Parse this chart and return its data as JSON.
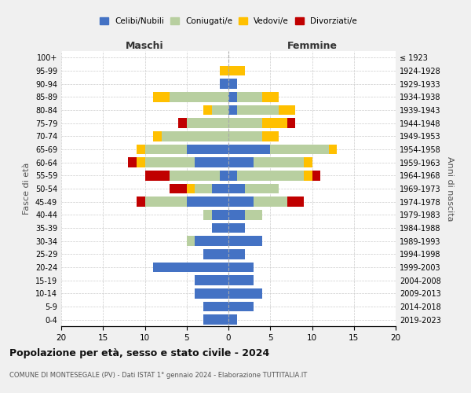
{
  "age_groups": [
    "0-4",
    "5-9",
    "10-14",
    "15-19",
    "20-24",
    "25-29",
    "30-34",
    "35-39",
    "40-44",
    "45-49",
    "50-54",
    "55-59",
    "60-64",
    "65-69",
    "70-74",
    "75-79",
    "80-84",
    "85-89",
    "90-94",
    "95-99",
    "100+"
  ],
  "birth_years": [
    "2019-2023",
    "2014-2018",
    "2009-2013",
    "2004-2008",
    "1999-2003",
    "1994-1998",
    "1989-1993",
    "1984-1988",
    "1979-1983",
    "1974-1978",
    "1969-1973",
    "1964-1968",
    "1959-1963",
    "1954-1958",
    "1949-1953",
    "1944-1948",
    "1939-1943",
    "1934-1938",
    "1929-1933",
    "1924-1928",
    "≤ 1923"
  ],
  "colors": {
    "celibi": "#4472c4",
    "coniugati": "#b8cfa0",
    "vedovi": "#ffc000",
    "divorziati": "#c00000"
  },
  "males": {
    "celibi": [
      3,
      3,
      4,
      4,
      9,
      3,
      4,
      2,
      2,
      5,
      2,
      1,
      4,
      5,
      0,
      0,
      0,
      0,
      1,
      0,
      0
    ],
    "coniugati": [
      0,
      0,
      0,
      0,
      0,
      0,
      1,
      0,
      1,
      5,
      2,
      6,
      6,
      5,
      8,
      5,
      2,
      7,
      0,
      0,
      0
    ],
    "vedovi": [
      0,
      0,
      0,
      0,
      0,
      0,
      0,
      0,
      0,
      0,
      1,
      0,
      1,
      1,
      1,
      0,
      1,
      2,
      0,
      1,
      0
    ],
    "divorziati": [
      0,
      0,
      0,
      0,
      0,
      0,
      0,
      0,
      0,
      1,
      2,
      3,
      1,
      0,
      0,
      1,
      0,
      0,
      0,
      0,
      0
    ]
  },
  "females": {
    "celibi": [
      1,
      3,
      4,
      3,
      3,
      2,
      4,
      2,
      2,
      3,
      2,
      1,
      3,
      5,
      0,
      0,
      1,
      1,
      1,
      0,
      0
    ],
    "coniugati": [
      0,
      0,
      0,
      0,
      0,
      0,
      0,
      0,
      2,
      4,
      4,
      8,
      6,
      7,
      4,
      4,
      5,
      3,
      0,
      0,
      0
    ],
    "vedovi": [
      0,
      0,
      0,
      0,
      0,
      0,
      0,
      0,
      0,
      0,
      0,
      1,
      1,
      1,
      2,
      3,
      2,
      2,
      0,
      2,
      0
    ],
    "divorziati": [
      0,
      0,
      0,
      0,
      0,
      0,
      0,
      0,
      0,
      2,
      0,
      1,
      0,
      0,
      0,
      1,
      0,
      0,
      0,
      0,
      0
    ]
  },
  "xlim": [
    -20,
    20
  ],
  "xticks": [
    -20,
    -15,
    -10,
    -5,
    0,
    5,
    10,
    15,
    20
  ],
  "xtick_labels": [
    "20",
    "15",
    "10",
    "5",
    "0",
    "5",
    "10",
    "15",
    "20"
  ],
  "title": "Popolazione per età, sesso e stato civile - 2024",
  "subtitle": "COMUNE DI MONTESEGALE (PV) - Dati ISTAT 1° gennaio 2024 - Elaborazione TUTTITALIA.IT",
  "ylabel_left": "Fasce di età",
  "ylabel_right": "Anni di nascita",
  "label_maschi": "Maschi",
  "label_femmine": "Femmine",
  "legend_labels": [
    "Celibi/Nubili",
    "Coniugati/e",
    "Vedovi/e",
    "Divorziati/e"
  ],
  "bg_color": "#f0f0f0",
  "plot_bg_color": "#ffffff"
}
